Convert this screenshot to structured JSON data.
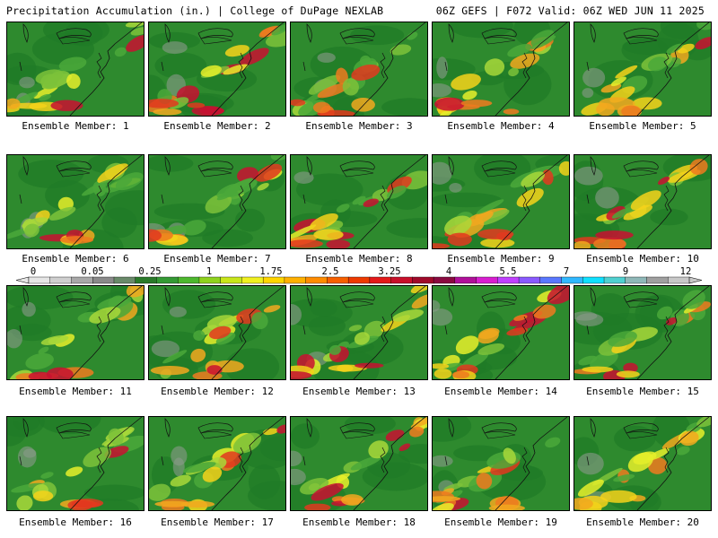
{
  "header": {
    "title": "Precipitation Accumulation (in.) | College of DuPage NEXLAB",
    "run": "06Z GEFS | F072 Valid: 06Z WED JUN 11 2025"
  },
  "members": [
    {
      "label": "Ensemble Member: 1"
    },
    {
      "label": "Ensemble Member: 2"
    },
    {
      "label": "Ensemble Member: 3"
    },
    {
      "label": "Ensemble Member: 4"
    },
    {
      "label": "Ensemble Member: 5"
    },
    {
      "label": "Ensemble Member: 6"
    },
    {
      "label": "Ensemble Member: 7"
    },
    {
      "label": "Ensemble Member: 8"
    },
    {
      "label": "Ensemble Member: 9"
    },
    {
      "label": "Ensemble Member: 10"
    },
    {
      "label": "Ensemble Member: 11"
    },
    {
      "label": "Ensemble Member: 12"
    },
    {
      "label": "Ensemble Member: 13"
    },
    {
      "label": "Ensemble Member: 14"
    },
    {
      "label": "Ensemble Member: 15"
    },
    {
      "label": "Ensemble Member: 16"
    },
    {
      "label": "Ensemble Member: 17"
    },
    {
      "label": "Ensemble Member: 18"
    },
    {
      "label": "Ensemble Member: 19"
    },
    {
      "label": "Ensemble Member: 20"
    }
  ],
  "colorbar": {
    "labels": [
      "0",
      "0.05",
      "0.25",
      "1",
      "1.75",
      "2.5",
      "3.25",
      "4",
      "5.5",
      "7",
      "9",
      "12"
    ],
    "colors": [
      "#e6e6e6",
      "#cfcfcf",
      "#a8a8a8",
      "#8a8a8a",
      "#6a8a6a",
      "#2a7a2a",
      "#349a34",
      "#4db82e",
      "#8fd21e",
      "#c8e61a",
      "#f0f020",
      "#ffd500",
      "#ffb000",
      "#ff8c00",
      "#f76000",
      "#ee3a00",
      "#e41a1a",
      "#c8102a",
      "#a00a2a",
      "#8a0a40",
      "#b0109a",
      "#d81ed0",
      "#c040ff",
      "#8a5aff",
      "#5a78ff",
      "#30b8ff",
      "#10e0ff",
      "#50d0d0",
      "#8fb8b8",
      "#a0a0a0",
      "#c8c8c8"
    ]
  }
}
